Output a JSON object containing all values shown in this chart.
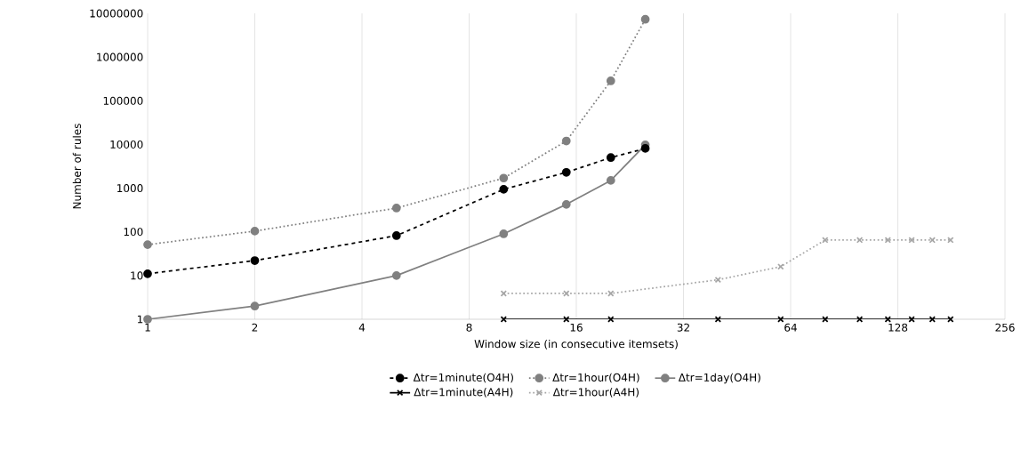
{
  "chart_data": {
    "type": "line",
    "xlabel": "Window size (in consecutive itemsets)",
    "ylabel": "Number of rules",
    "log": "xy",
    "grid": "x",
    "legend": "bottom",
    "xlim": [
      1,
      256
    ],
    "xticks": [
      1,
      2,
      4,
      8,
      16,
      32,
      64,
      128,
      256
    ],
    "ylim": [
      1,
      10000000
    ],
    "yticks": [
      1,
      10,
      100,
      1000,
      10000,
      100000,
      1000000,
      10000000
    ],
    "series": [
      {
        "name": "Δtr=1minute(O4H)",
        "color": "#000000",
        "line_style": "dashed",
        "marker": "circle",
        "x": [
          1,
          2,
          5,
          10,
          15,
          20,
          25
        ],
        "values": [
          11,
          22,
          82,
          940,
          2300,
          5000,
          8100
        ]
      },
      {
        "name": "Δtr=1hour(O4H)",
        "color": "#808080",
        "line_style": "dotted",
        "marker": "circle",
        "x": [
          1,
          2,
          5,
          10,
          15,
          20,
          25
        ],
        "values": [
          51,
          104,
          350,
          1700,
          12000,
          285000,
          7300000
        ]
      },
      {
        "name": "Δtr=1day(O4H)",
        "color": "#808080",
        "line_style": "solid",
        "marker": "circle",
        "x": [
          1,
          2,
          5,
          10,
          15,
          20,
          25
        ],
        "values": [
          1,
          2,
          10,
          90,
          425,
          1500,
          9800
        ]
      },
      {
        "name": "Δtr=1minute(A4H)",
        "color": "#000000",
        "line_style": "solid",
        "marker": "cross",
        "x": [
          10,
          15,
          20,
          40,
          60,
          80,
          100,
          120,
          140,
          160,
          180
        ],
        "values": [
          1,
          1,
          1,
          1,
          1,
          1,
          1,
          1,
          1,
          1,
          1
        ]
      },
      {
        "name": "Δtr=1hour(A4H)",
        "color": "#a6a6a6",
        "line_style": "dotted",
        "marker": "cross",
        "x": [
          10,
          15,
          20,
          40,
          60,
          80,
          100,
          120,
          140,
          160,
          180
        ],
        "values": [
          3.9,
          3.9,
          3.9,
          8,
          16,
          65,
          65,
          65,
          65,
          65,
          65
        ]
      }
    ]
  }
}
